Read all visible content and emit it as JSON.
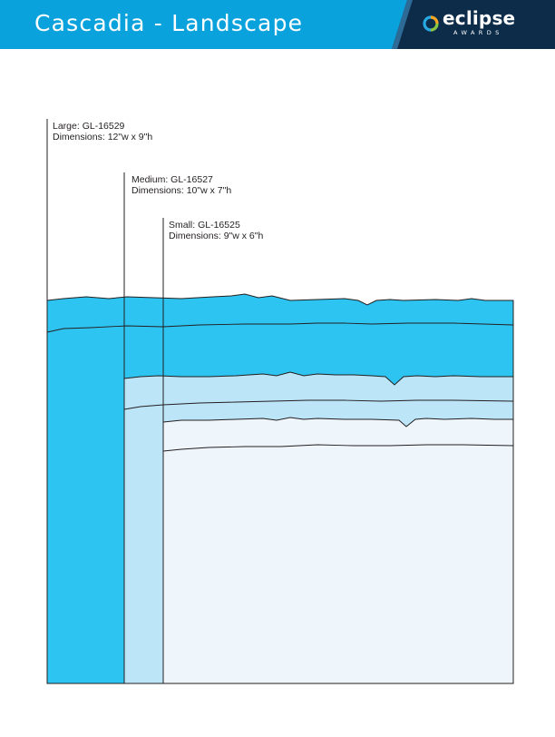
{
  "header": {
    "title": "Cascadia - Landscape",
    "logo_wordmark": "eclipse",
    "logo_subtext": "AWARDS"
  },
  "sizes": [
    {
      "name": "Large: GL-16529",
      "dimensions": "Dimensions: 12\"w x 9\"h"
    },
    {
      "name": "Medium: GL-16527",
      "dimensions": "Dimensions: 10\"w x 7\"h"
    },
    {
      "name": "Small: GL-16525",
      "dimensions": "Dimensions: 9\"w x 6\"h"
    }
  ],
  "colors": {
    "header_bg": "#0aa2dc",
    "large_fill": "#2ec4f1",
    "medium_fill": "#bce5f8",
    "small_fill": "#eef6fc",
    "outline": "#231f20"
  }
}
